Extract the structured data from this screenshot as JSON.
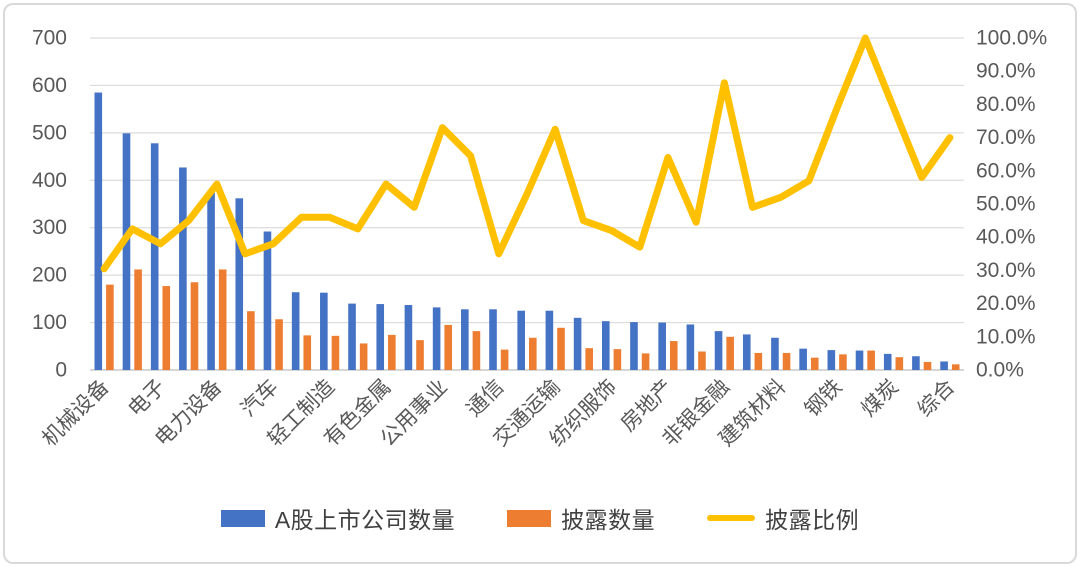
{
  "chart_data": {
    "type": "combo",
    "title": "",
    "categories": [
      "机械设备",
      "",
      "电子",
      "",
      "电力设备",
      "",
      "汽车",
      "",
      "轻工制造",
      "",
      "有色金属",
      "",
      "公用事业",
      "",
      "通信",
      "",
      "交通运输",
      "",
      "纺织服饰",
      "",
      "房地产",
      "",
      "非银金融",
      "",
      "建筑材料",
      "",
      "钢铁",
      "",
      "煤炭",
      "",
      "综合"
    ],
    "series": [
      {
        "name": "A股上市公司数量",
        "type": "bar",
        "axis": "left",
        "color": "#4472C4",
        "values": [
          585,
          499,
          478,
          427,
          374,
          362,
          292,
          164,
          163,
          140,
          139,
          137,
          132,
          128,
          128,
          125,
          125,
          110,
          103,
          101,
          100,
          96,
          82,
          75,
          68,
          45,
          42,
          41,
          34,
          29,
          18
        ]
      },
      {
        "name": "披露数量",
        "type": "bar",
        "axis": "left",
        "color": "#ED7D31",
        "values": [
          180,
          212,
          177,
          185,
          212,
          124,
          107,
          73,
          72,
          56,
          74,
          63,
          95,
          82,
          43,
          68,
          89,
          46,
          44,
          35,
          61,
          39,
          70,
          36,
          36,
          26,
          33,
          41,
          27,
          17,
          12
        ]
      },
      {
        "name": "披露比例",
        "type": "line",
        "axis": "right",
        "color": "#FFC000",
        "values_percent": [
          30.5,
          42.5,
          38,
          45,
          56,
          35,
          38,
          46,
          46,
          42.5,
          56,
          49,
          73,
          64.5,
          35,
          53,
          72.5,
          45,
          42,
          37,
          64,
          44.5,
          86.5,
          49,
          52,
          57,
          79,
          100,
          79,
          58,
          70
        ]
      }
    ],
    "left_axis": {
      "min": 0,
      "max": 700,
      "step": 100,
      "ticks": [
        "700",
        "600",
        "500",
        "400",
        "300",
        "200",
        "100",
        "0"
      ]
    },
    "right_axis": {
      "min": 0,
      "max": 100,
      "step": 10,
      "ticks": [
        "100.0%",
        "90.0%",
        "80.0%",
        "70.0%",
        "60.0%",
        "50.0%",
        "40.0%",
        "30.0%",
        "20.0%",
        "10.0%",
        "0.0%"
      ]
    },
    "grid": true,
    "legend_position": "bottom",
    "xlabel": "",
    "ylabel": ""
  },
  "colors": {
    "grid": "#DCDCDC",
    "axis_line": "#C8C8C8",
    "axis_text": "#595959",
    "category_text": "#595959",
    "legend_text": "#404040",
    "frame_border": "#D9D9D9",
    "background": "#FFFFFF"
  }
}
